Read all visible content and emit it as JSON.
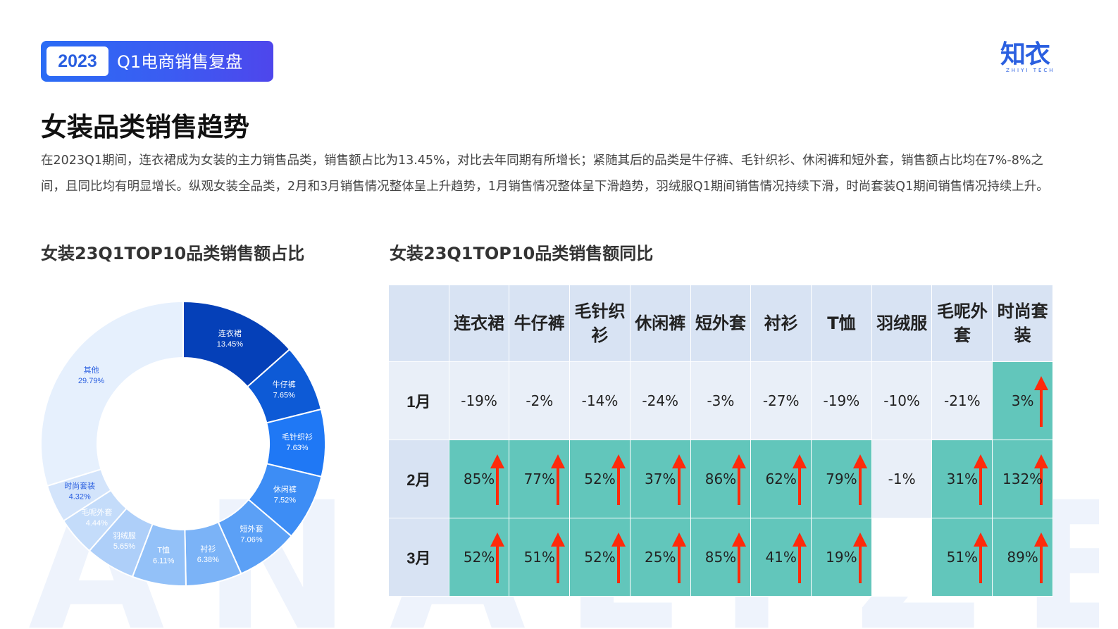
{
  "header": {
    "year": "2023",
    "title": "Q1电商销售复盘"
  },
  "logo": {
    "main": "知衣",
    "sub": "ZHIYI TECH"
  },
  "page_title": "女装品类销售趋势",
  "summary": "在2023Q1期间，连衣裙成为女装的主力销售品类，销售额占比为13.45%，对比去年同期有所增长；紧随其后的品类是牛仔裤、毛针织衫、休闲裤和短外套，销售额占比均在7%-8%之间，且同比均有明显增长。纵观女装全品类，2月和3月销售情况整体呈上升趋势，1月销售情况整体呈下滑趋势，羽绒服Q1期间销售情况持续下滑，时尚套装Q1期间销售情况持续上升。",
  "watermark": "ANALYZE",
  "colors": {
    "brand": "#2a5fe0",
    "positive_cell": "#62c6bb",
    "negative_cell": "#e9eff8",
    "header_cell": "#d8e3f3",
    "arrow": "#ff2a0a"
  },
  "chart_data": [
    {
      "type": "pie",
      "title": "女装23Q1TOP10品类销售额占比",
      "donut": true,
      "categories": [
        "连衣裙",
        "牛仔裤",
        "毛针织衫",
        "休闲裤",
        "短外套",
        "衬衫",
        "T恤",
        "羽绒服",
        "毛呢外套",
        "时尚套装",
        "其他"
      ],
      "values": [
        13.45,
        7.65,
        7.63,
        7.52,
        7.06,
        6.38,
        6.11,
        5.65,
        4.44,
        4.32,
        29.79
      ],
      "labels": [
        "13.45%",
        "7.65%",
        "7.63%",
        "7.52%",
        "7.06%",
        "6.38%",
        "6.11%",
        "5.65%",
        "4.44%",
        "4.32%",
        "29.79%"
      ],
      "colors": [
        "#0540b8",
        "#0d5ad6",
        "#1f78f5",
        "#3d8df5",
        "#5ba0f6",
        "#7bb3f7",
        "#93c1f8",
        "#aecff9",
        "#c4dcfa",
        "#d3e4fb",
        "#e6f0fd"
      ],
      "label_colors": [
        "#ffffff",
        "#ffffff",
        "#ffffff",
        "#ffffff",
        "#ffffff",
        "#ffffff",
        "#ffffff",
        "#ffffff",
        "#ffffff",
        "#2a5fe0",
        "#2a5fe0"
      ]
    },
    {
      "type": "table",
      "title": "女装23Q1TOP10品类销售额同比",
      "columns": [
        "连衣裙",
        "牛仔裤",
        "毛针织衫",
        "休闲裤",
        "短外套",
        "衬衫",
        "T恤",
        "羽绒服",
        "毛呢外套",
        "时尚套装"
      ],
      "rows": [
        {
          "label": "1月",
          "values": [
            "-19%",
            "-2%",
            "-14%",
            "-24%",
            "-3%",
            "-27%",
            "-19%",
            "-10%",
            "-21%",
            "3%"
          ]
        },
        {
          "label": "2月",
          "values": [
            "85%",
            "77%",
            "52%",
            "37%",
            "86%",
            "62%",
            "79%",
            "-1%",
            "31%",
            "132%"
          ]
        },
        {
          "label": "3月",
          "values": [
            "52%",
            "51%",
            "52%",
            "25%",
            "85%",
            "41%",
            "19%",
            "",
            "51%",
            "89%"
          ]
        }
      ]
    }
  ]
}
